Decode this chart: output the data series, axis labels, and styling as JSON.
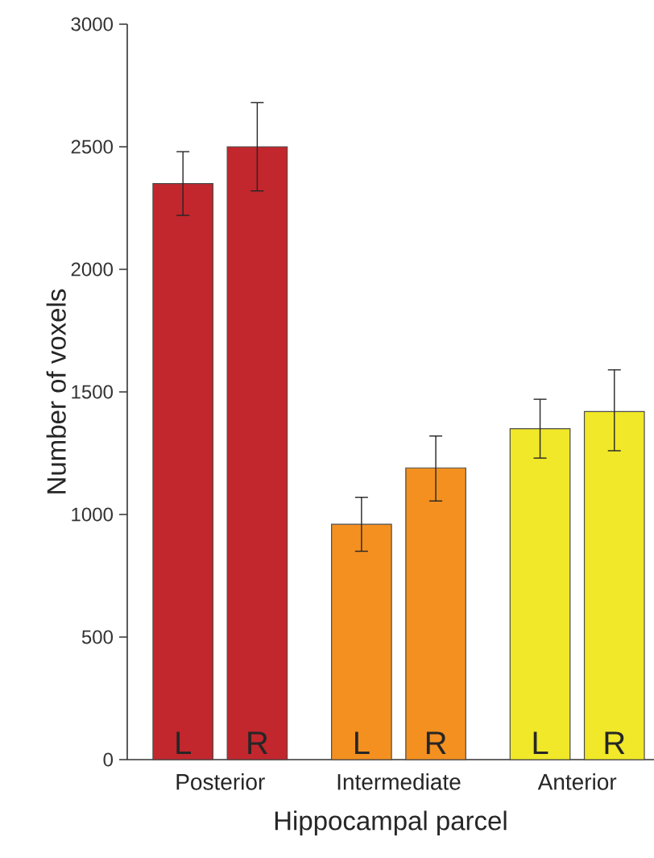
{
  "chart_data": {
    "type": "bar",
    "xlabel": "Hippocampal parcel",
    "ylabel": "Number of voxels",
    "categories": [
      "Posterior",
      "Intermediate",
      "Anterior"
    ],
    "series": [
      {
        "name": "L",
        "colors": [
          "#c1272d",
          "#f39020",
          "#f0e828"
        ],
        "values": [
          2350,
          960,
          1350
        ],
        "errors": [
          [
            2220,
            2480
          ],
          [
            850,
            1070
          ],
          [
            1230,
            1470
          ]
        ]
      },
      {
        "name": "R",
        "colors": [
          "#c1272d",
          "#f39020",
          "#f0e828"
        ],
        "values": [
          2500,
          1190,
          1420
        ],
        "errors": [
          [
            2320,
            2680
          ],
          [
            1055,
            1320
          ],
          [
            1260,
            1590
          ]
        ]
      }
    ],
    "ylim": [
      0,
      3000
    ],
    "yticks": [
      0,
      500,
      1000,
      1500,
      2000,
      2500,
      3000
    ]
  }
}
